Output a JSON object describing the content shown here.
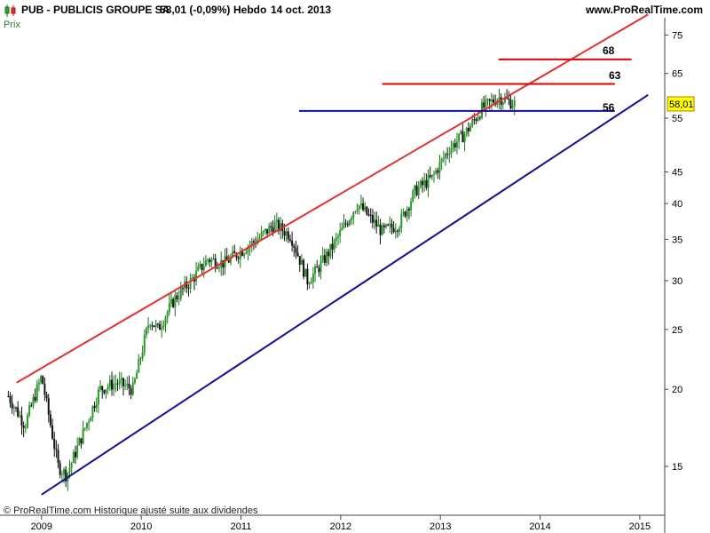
{
  "header": {
    "symbol": "PUB - PUBLICIS GROUPE SA",
    "price_change": "58,01 (-0,09%)",
    "period": "Hebdo",
    "date": "14 oct. 2013",
    "site": "www.ProRealTime.com"
  },
  "panel_label": "Prix",
  "footer_note": "© ProRealTime.com Historique ajusté suite aux dividendes",
  "last_price_label": "58,01",
  "chart_data": {
    "type": "candlestick",
    "scale": "log",
    "ylim": [
      12.5,
      80
    ],
    "xlim": [
      "2008-08",
      "2015-04"
    ],
    "y_ticks": [
      15,
      20,
      25,
      30,
      35,
      40,
      45,
      55,
      65,
      75
    ],
    "x_ticks": [
      "2009",
      "2010",
      "2011",
      "2012",
      "2013",
      "2014",
      "2015"
    ],
    "last_price": 58.01,
    "grid": false,
    "colors": {
      "up": "#1a7a1a",
      "down": "#111111",
      "resistance_trend": "#e03030",
      "support_trend": "#101090",
      "horizontal_red": "#e00000",
      "horizontal_blue": "#101090"
    },
    "trendlines": [
      {
        "name": "upper channel",
        "color": "red",
        "from": {
          "x": "2008-10",
          "y": 20.5
        },
        "to": {
          "x": "2015-02",
          "y": 81
        }
      },
      {
        "name": "lower channel",
        "color": "blue",
        "from": {
          "x": "2009-01",
          "y": 13.5
        },
        "to": {
          "x": "2015-02",
          "y": 60
        }
      }
    ],
    "levels": [
      {
        "label": "68",
        "value": 68.5,
        "color": "red",
        "from": "2013-08",
        "to": "2014-12"
      },
      {
        "label": "63",
        "value": 62.5,
        "color": "red",
        "from": "2012-06",
        "to": "2014-10"
      },
      {
        "label": "56",
        "value": 56.5,
        "color": "blue",
        "from": "2011-08",
        "to": "2014-10"
      }
    ],
    "price_path": [
      {
        "x": "2008-09",
        "y": 19.5
      },
      {
        "x": "2008-11",
        "y": 17.5
      },
      {
        "x": "2009-01",
        "y": 21
      },
      {
        "x": "2009-03",
        "y": 15
      },
      {
        "x": "2009-04",
        "y": 14.5
      },
      {
        "x": "2009-06",
        "y": 17
      },
      {
        "x": "2009-08",
        "y": 20
      },
      {
        "x": "2009-10",
        "y": 20.5
      },
      {
        "x": "2009-12",
        "y": 20
      },
      {
        "x": "2010-02",
        "y": 26
      },
      {
        "x": "2010-03",
        "y": 25
      },
      {
        "x": "2010-05",
        "y": 28
      },
      {
        "x": "2010-07",
        "y": 30
      },
      {
        "x": "2010-09",
        "y": 32.5
      },
      {
        "x": "2010-11",
        "y": 32
      },
      {
        "x": "2011-01",
        "y": 33.5
      },
      {
        "x": "2011-03",
        "y": 35
      },
      {
        "x": "2011-05",
        "y": 37
      },
      {
        "x": "2011-07",
        "y": 35.5
      },
      {
        "x": "2011-09",
        "y": 30
      },
      {
        "x": "2011-10",
        "y": 31
      },
      {
        "x": "2011-12",
        "y": 34
      },
      {
        "x": "2012-03",
        "y": 40
      },
      {
        "x": "2012-06",
        "y": 36
      },
      {
        "x": "2012-08",
        "y": 37
      },
      {
        "x": "2012-10",
        "y": 42
      },
      {
        "x": "2012-12",
        "y": 44
      },
      {
        "x": "2013-02",
        "y": 49
      },
      {
        "x": "2013-04",
        "y": 52
      },
      {
        "x": "2013-06",
        "y": 57
      },
      {
        "x": "2013-08",
        "y": 59.5
      },
      {
        "x": "2013-10",
        "y": 58.01
      }
    ]
  }
}
